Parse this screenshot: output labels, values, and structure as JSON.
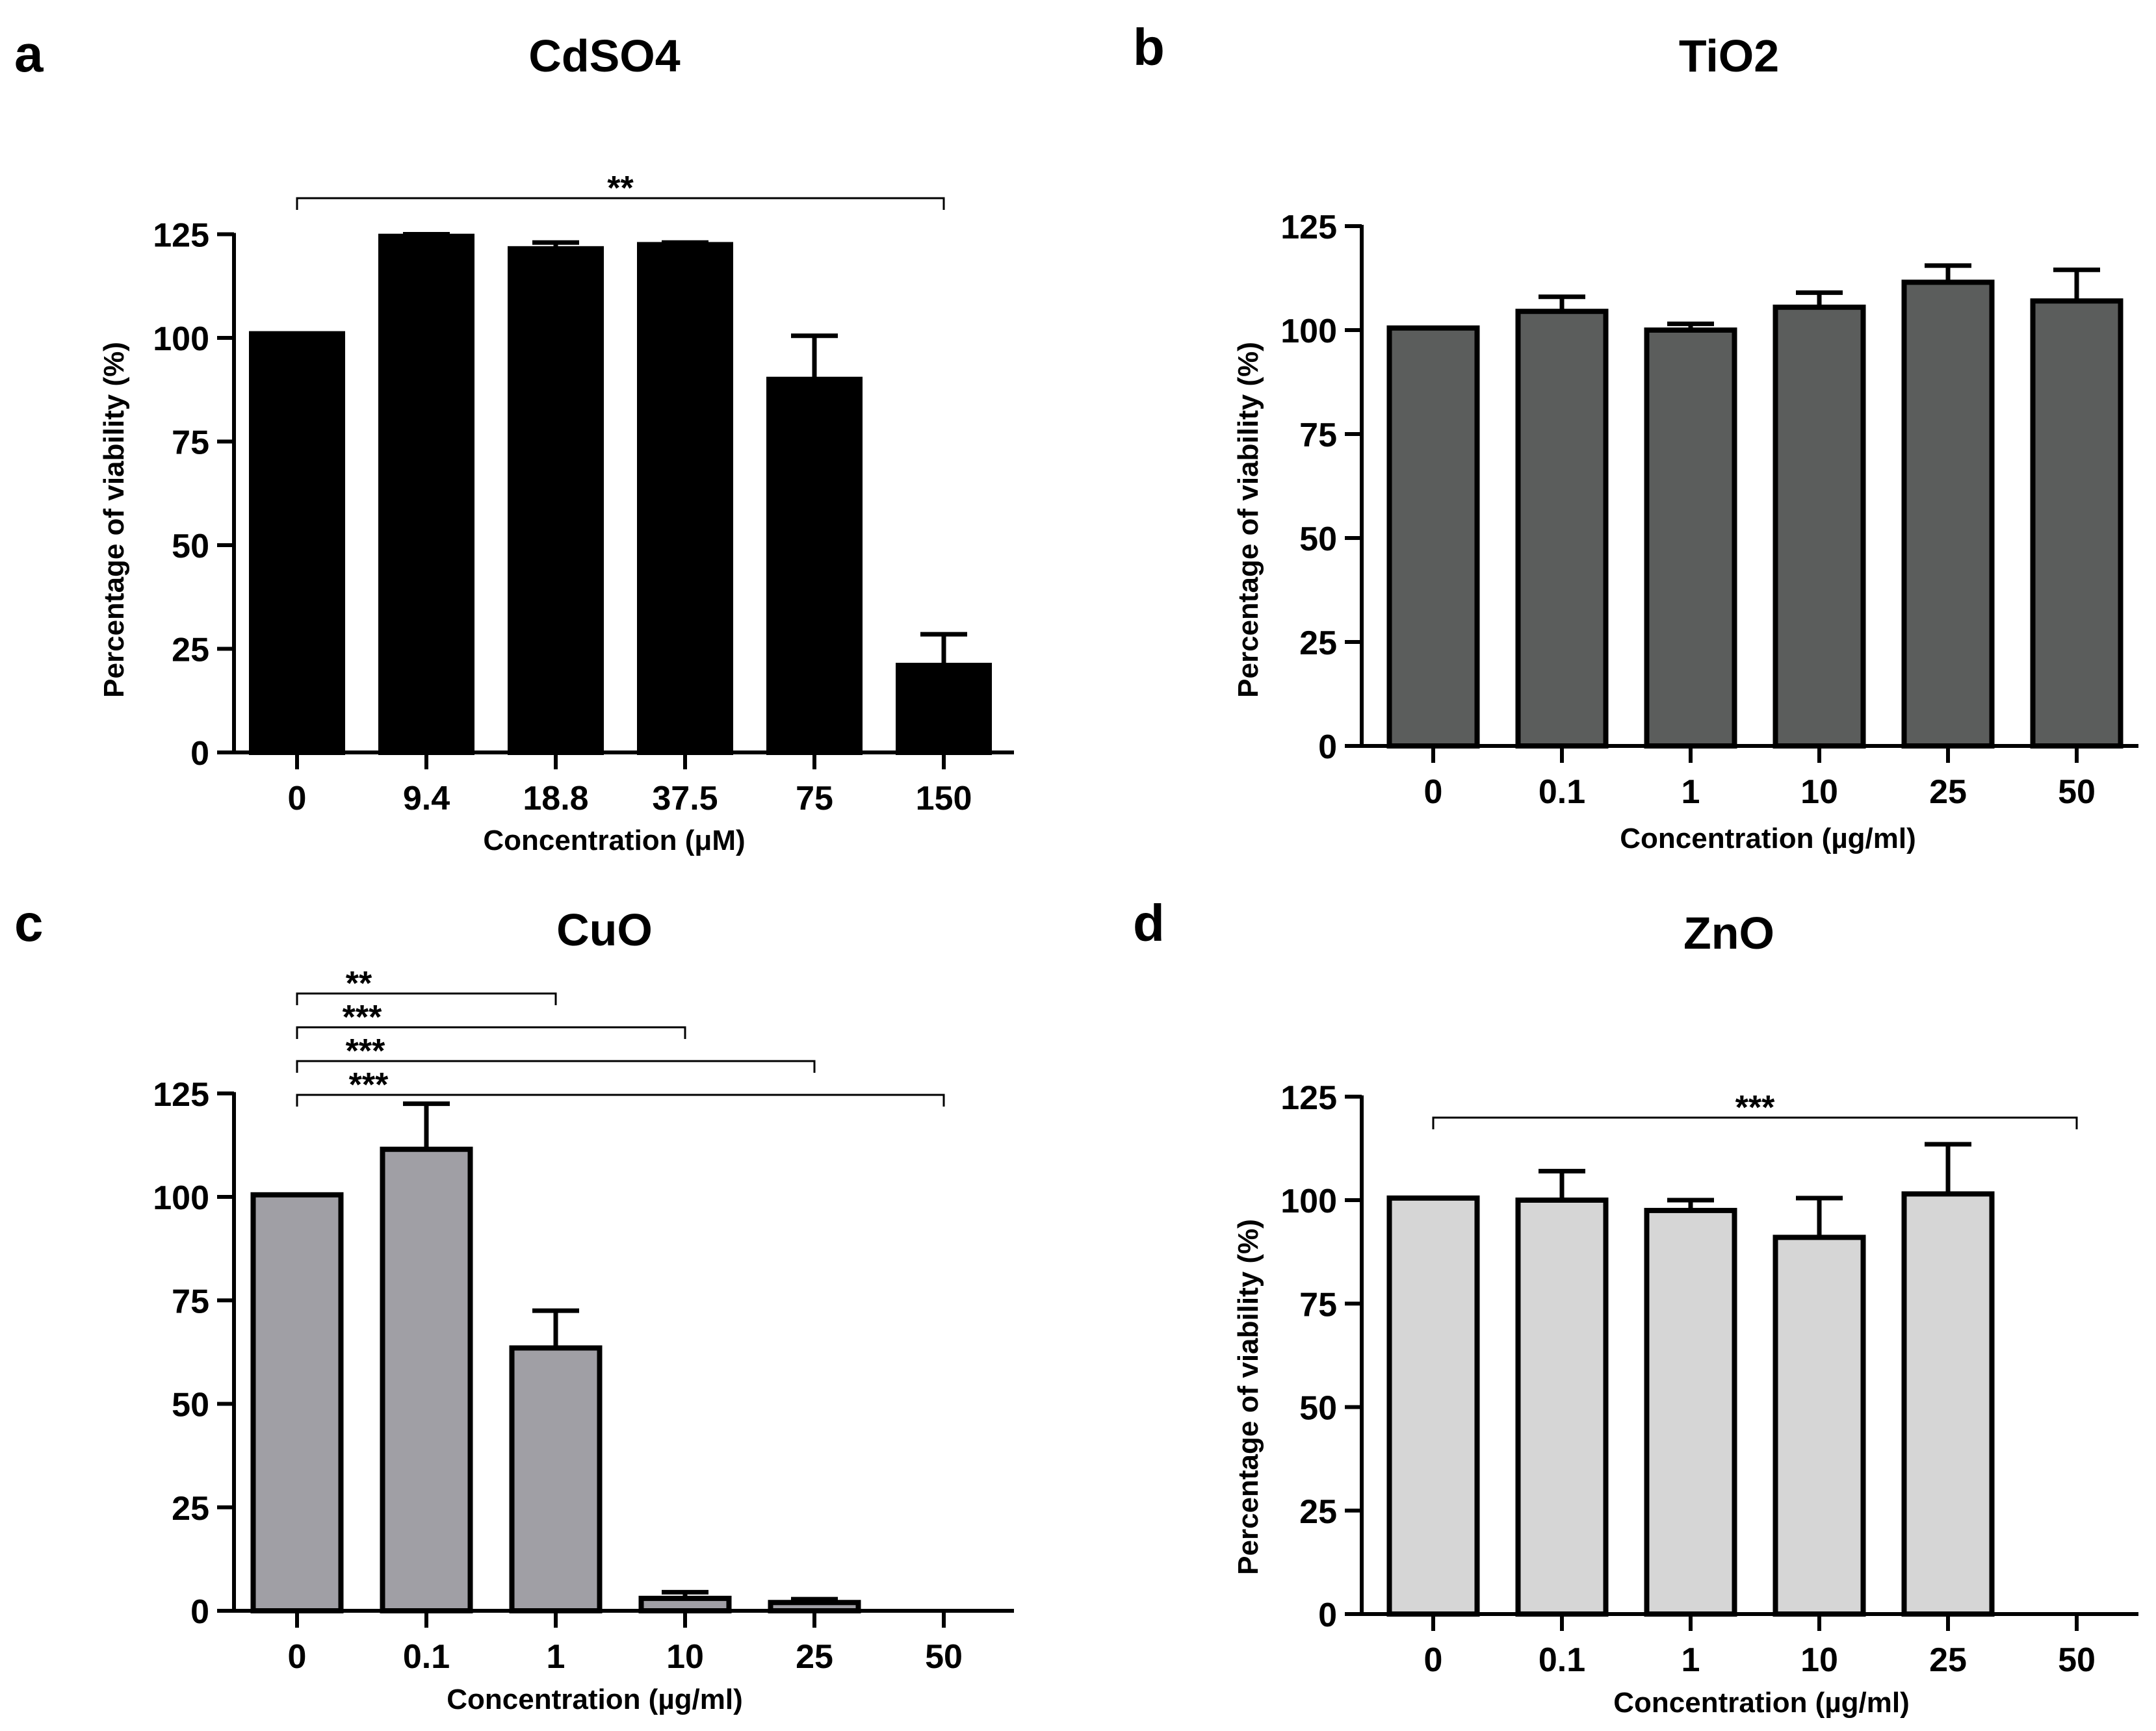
{
  "chart_data": [
    {
      "type": "bar",
      "panel_label": "a",
      "title": "CdSO4",
      "xlabel": "Concentration (μM)",
      "ylabel": "Percentage of viability (%)",
      "ylim": [
        0,
        125
      ],
      "yticks": [
        0,
        25,
        50,
        75,
        100,
        125
      ],
      "categories": [
        "0",
        "9.4",
        "18.8",
        "37.5",
        "75",
        "150"
      ],
      "values": [
        101,
        124.5,
        121.5,
        122.5,
        90,
        21
      ],
      "errors": [
        0,
        0.5,
        1.5,
        0.5,
        10.5,
        7.5
      ],
      "fill_color": "#000000",
      "significance": [
        {
          "from": 0,
          "to": 5,
          "label": "**"
        }
      ]
    },
    {
      "type": "bar",
      "panel_label": "b",
      "title": "TiO2",
      "xlabel": "Concentration (µg/ml)",
      "ylabel": "Percentage of viability (%)",
      "ylim": [
        0,
        125
      ],
      "yticks": [
        0,
        25,
        50,
        75,
        100,
        125
      ],
      "categories": [
        "0",
        "0.1",
        "1",
        "10",
        "25",
        "50"
      ],
      "values": [
        100.5,
        104.5,
        100,
        105.5,
        111.5,
        107
      ],
      "errors": [
        0,
        3.5,
        1.5,
        3.5,
        4,
        7.5
      ],
      "fill_color": "#5b5d5c",
      "significance": []
    },
    {
      "type": "bar",
      "panel_label": "c",
      "title": "CuO",
      "xlabel": "Concentration (µg/ml)",
      "ylabel": "",
      "ylim": [
        0,
        125
      ],
      "yticks": [
        0,
        25,
        50,
        75,
        100,
        125
      ],
      "categories": [
        "0",
        "0.1",
        "1",
        "10",
        "25",
        "50"
      ],
      "values": [
        100.5,
        111.5,
        63.5,
        3,
        2,
        0
      ],
      "errors": [
        0,
        11,
        9,
        1.5,
        0.8,
        0
      ],
      "fill_color": "#a09fa5",
      "significance": [
        {
          "from": 0,
          "to": 2,
          "label": "**"
        },
        {
          "from": 0,
          "to": 3,
          "label": "***"
        },
        {
          "from": 0,
          "to": 4,
          "label": "***"
        },
        {
          "from": 0,
          "to": 5,
          "label": "***"
        }
      ]
    },
    {
      "type": "bar",
      "panel_label": "d",
      "title": "ZnO",
      "xlabel": "Concentration (µg/ml)",
      "ylabel": "Percentage of viability (%)",
      "ylim": [
        0,
        125
      ],
      "yticks": [
        0,
        25,
        50,
        75,
        100,
        125
      ],
      "categories": [
        "0",
        "0.1",
        "1",
        "10",
        "25",
        "50"
      ],
      "values": [
        100.5,
        100,
        97.5,
        91,
        101.5,
        0
      ],
      "errors": [
        0,
        7,
        2.5,
        9.5,
        12,
        0
      ],
      "fill_color": "#d6d6d6",
      "significance": [
        {
          "from": 0,
          "to": 5,
          "label": "***"
        }
      ]
    }
  ]
}
